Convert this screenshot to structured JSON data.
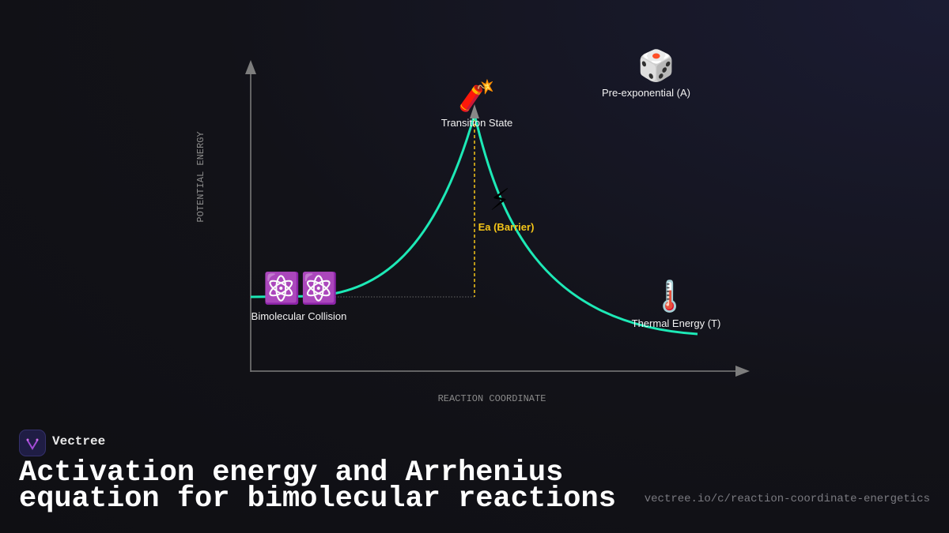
{
  "diagram": {
    "y_axis_label": "POTENTIAL ENERGY",
    "x_axis_label": "REACTION COORDINATE",
    "nodes": [
      {
        "icon": "🧨",
        "label": "Transition State"
      },
      {
        "icon": "🎲",
        "label": "Pre-exponential (A)"
      },
      {
        "icon": "⚡",
        "label": "Ea (Barrier)"
      },
      {
        "icon": "⚛️⚛️",
        "label": "Bimolecular Collision"
      },
      {
        "icon": "🌡️",
        "label": "Thermal Energy (T)"
      }
    ]
  },
  "footer": {
    "brand": "Vectree",
    "title": "Activation energy and Arrhenius equation for bimolecular reactions",
    "url": "vectree.io/c/reaction-coordinate-energetics"
  }
}
